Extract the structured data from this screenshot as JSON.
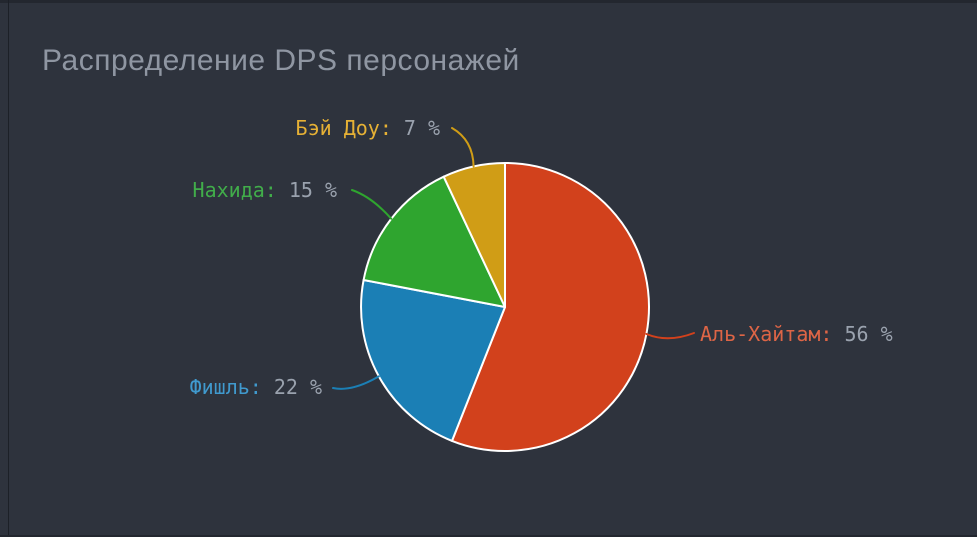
{
  "window": {
    "background": "#2e333d"
  },
  "title": "Распределение DPS персонажей",
  "title_color": "#8f96a2",
  "chart_data": {
    "type": "pie",
    "title": "Распределение DPS персонажей",
    "categories": [
      "Аль-Хайтам",
      "Фишль",
      "Нахида",
      "Бэй Доу"
    ],
    "values": [
      56,
      22,
      15,
      7
    ],
    "unit": "%",
    "labels": [
      "Аль-Хайтам: 56 %",
      "Фишль: 22 %",
      "Нахида: 15 %",
      "Бэй Доу: 7 %"
    ],
    "colors": [
      "#d2411c",
      "#1b7fb5",
      "#2fa52f",
      "#d09d16"
    ],
    "label_colors": [
      "#de6546",
      "#409ace",
      "#41ad4a",
      "#e6b135"
    ],
    "value_text_color": "#9aa2ae",
    "slice_border_color": "#ffffff",
    "start_angle_deg": 0,
    "direction": "clockwise",
    "legend": "none"
  },
  "callouts": [
    {
      "name": "Аль-Хайтам:",
      "value": "56 %"
    },
    {
      "name": "Фишль:",
      "value": "22 %"
    },
    {
      "name": "Нахида:",
      "value": "15 %"
    },
    {
      "name": "Бэй Доу:",
      "value": "7 %"
    }
  ]
}
